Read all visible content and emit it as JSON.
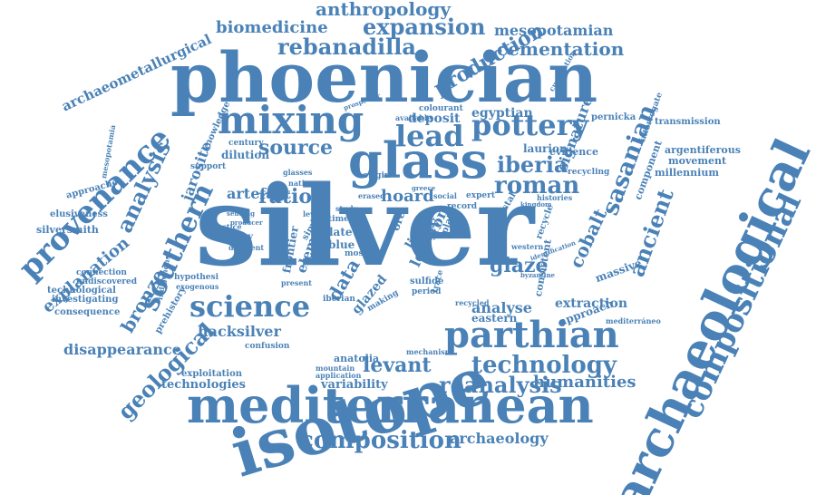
{
  "cloud": {
    "word_color": "#4a82b7",
    "words": [
      {
        "text": "silver"
      },
      {
        "text": "isotope"
      },
      {
        "text": "phoenician"
      },
      {
        "text": "mediterranean"
      },
      {
        "text": "archaeological"
      },
      {
        "text": "glass"
      },
      {
        "text": "mixing"
      },
      {
        "text": "parthian"
      },
      {
        "text": "compositional"
      },
      {
        "text": "provenance"
      },
      {
        "text": "southern"
      },
      {
        "text": "pottery"
      },
      {
        "text": "lead"
      },
      {
        "text": "roman"
      },
      {
        "text": "sasanian"
      },
      {
        "text": "science"
      },
      {
        "text": "technology"
      },
      {
        "text": "composition"
      },
      {
        "text": "iberia"
      },
      {
        "text": "ancient"
      },
      {
        "text": "analysis"
      },
      {
        "text": "bronze"
      },
      {
        "text": "levant"
      },
      {
        "text": "geological"
      },
      {
        "text": "reanalysis"
      },
      {
        "text": "expansion"
      },
      {
        "text": "rebanadilla"
      },
      {
        "text": "production"
      },
      {
        "text": "anthropology"
      },
      {
        "text": "biomedicine"
      },
      {
        "text": "cementation"
      },
      {
        "text": "mesopotamian"
      },
      {
        "text": "source"
      },
      {
        "text": "ratio"
      },
      {
        "text": "hoard"
      },
      {
        "text": "glaze"
      },
      {
        "text": "cobalt"
      },
      {
        "text": "data"
      },
      {
        "text": "jarosite"
      },
      {
        "text": "artefact"
      },
      {
        "text": "explanation"
      },
      {
        "text": "archaeometallurgical"
      },
      {
        "text": "disappearance"
      },
      {
        "text": "hacksilver"
      },
      {
        "text": "humanities"
      },
      {
        "text": "archaeology"
      },
      {
        "text": "analyse"
      },
      {
        "text": "extraction"
      },
      {
        "text": "egyptian"
      },
      {
        "text": "deposit"
      },
      {
        "text": "signature"
      },
      {
        "text": "variability"
      },
      {
        "text": "technologies"
      },
      {
        "text": "exploitation"
      },
      {
        "text": "anatolia"
      },
      {
        "text": "laurion"
      },
      {
        "text": "evidence"
      },
      {
        "text": "dilution"
      },
      {
        "text": "element"
      },
      {
        "text": "frontier"
      },
      {
        "text": "glazed"
      },
      {
        "text": "legacy"
      },
      {
        "text": "iron"
      },
      {
        "text": "line"
      },
      {
        "text": "late"
      },
      {
        "text": "blue"
      },
      {
        "text": "eastern"
      },
      {
        "text": "massive"
      },
      {
        "text": "approach"
      },
      {
        "text": "component"
      },
      {
        "text": "argentiferous"
      },
      {
        "text": "movement"
      },
      {
        "text": "millennium"
      },
      {
        "text": "transmission"
      },
      {
        "text": "interrogate"
      },
      {
        "text": "pernicka"
      },
      {
        "text": "recycling"
      },
      {
        "text": "consistent"
      },
      {
        "text": "silversmith"
      },
      {
        "text": "elusiveness"
      },
      {
        "text": "approaches"
      },
      {
        "text": "technological"
      },
      {
        "text": "investigating"
      },
      {
        "text": "consequence"
      },
      {
        "text": "connection"
      },
      {
        "text": "undiscovered"
      },
      {
        "text": "prehistory"
      },
      {
        "text": "hypothesi"
      },
      {
        "text": "exogenous"
      },
      {
        "text": "indigenous"
      },
      {
        "text": "knowledge"
      },
      {
        "text": "mesopotamia"
      },
      {
        "text": "century"
      },
      {
        "text": "support"
      },
      {
        "text": "history"
      },
      {
        "text": "different"
      },
      {
        "text": "practice"
      },
      {
        "text": "confusion"
      },
      {
        "text": "mountain"
      },
      {
        "text": "application"
      },
      {
        "text": "mechanism"
      },
      {
        "text": "period"
      },
      {
        "text": "sulfide"
      },
      {
        "text": "iberian"
      },
      {
        "text": "recycled"
      },
      {
        "text": "crystal"
      },
      {
        "text": "western"
      },
      {
        "text": "recycle"
      },
      {
        "text": "record"
      },
      {
        "text": "social"
      },
      {
        "text": "expert"
      },
      {
        "text": "origin"
      },
      {
        "text": "erased"
      },
      {
        "text": "greece"
      },
      {
        "text": "glasses"
      },
      {
        "text": "native"
      },
      {
        "text": "colourant"
      },
      {
        "text": "available"
      },
      {
        "text": "prospector"
      },
      {
        "text": "cupellation"
      },
      {
        "text": "histories"
      },
      {
        "text": "kingdom"
      },
      {
        "text": "mediterráneo"
      },
      {
        "text": "byzantine"
      },
      {
        "text": "identification"
      },
      {
        "text": "mosi"
      },
      {
        "text": "similar"
      },
      {
        "text": "trace"
      },
      {
        "text": "making"
      },
      {
        "text": "study"
      },
      {
        "text": "time"
      },
      {
        "text": "level"
      },
      {
        "text": "present"
      },
      {
        "text": "sending"
      },
      {
        "text": "producer"
      },
      {
        "text": "ore"
      },
      {
        "text": "plata"
      }
    ]
  }
}
